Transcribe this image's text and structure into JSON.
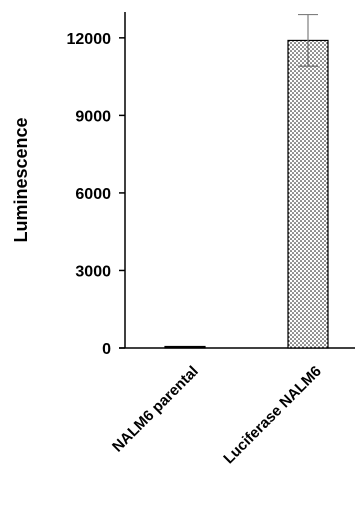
{
  "chart_data": {
    "type": "bar",
    "title": "",
    "xlabel": "",
    "ylabel": "Luminescence",
    "categories": [
      "NALM6 parental",
      "Luciferase NALM6"
    ],
    "series": [
      {
        "values": [
          40,
          11900
        ],
        "error": [
          0,
          1000
        ]
      }
    ],
    "ylim": [
      0,
      13000
    ],
    "yticks": [
      0,
      3000,
      6000,
      9000,
      12000
    ],
    "grid": false,
    "legend": "none",
    "bar_fill": "dotted stipple",
    "colors": {
      "bar_stroke": "#000000",
      "bar_dot": "#000000",
      "error_bar": "#7f7f7f",
      "axis": "#000000"
    }
  }
}
